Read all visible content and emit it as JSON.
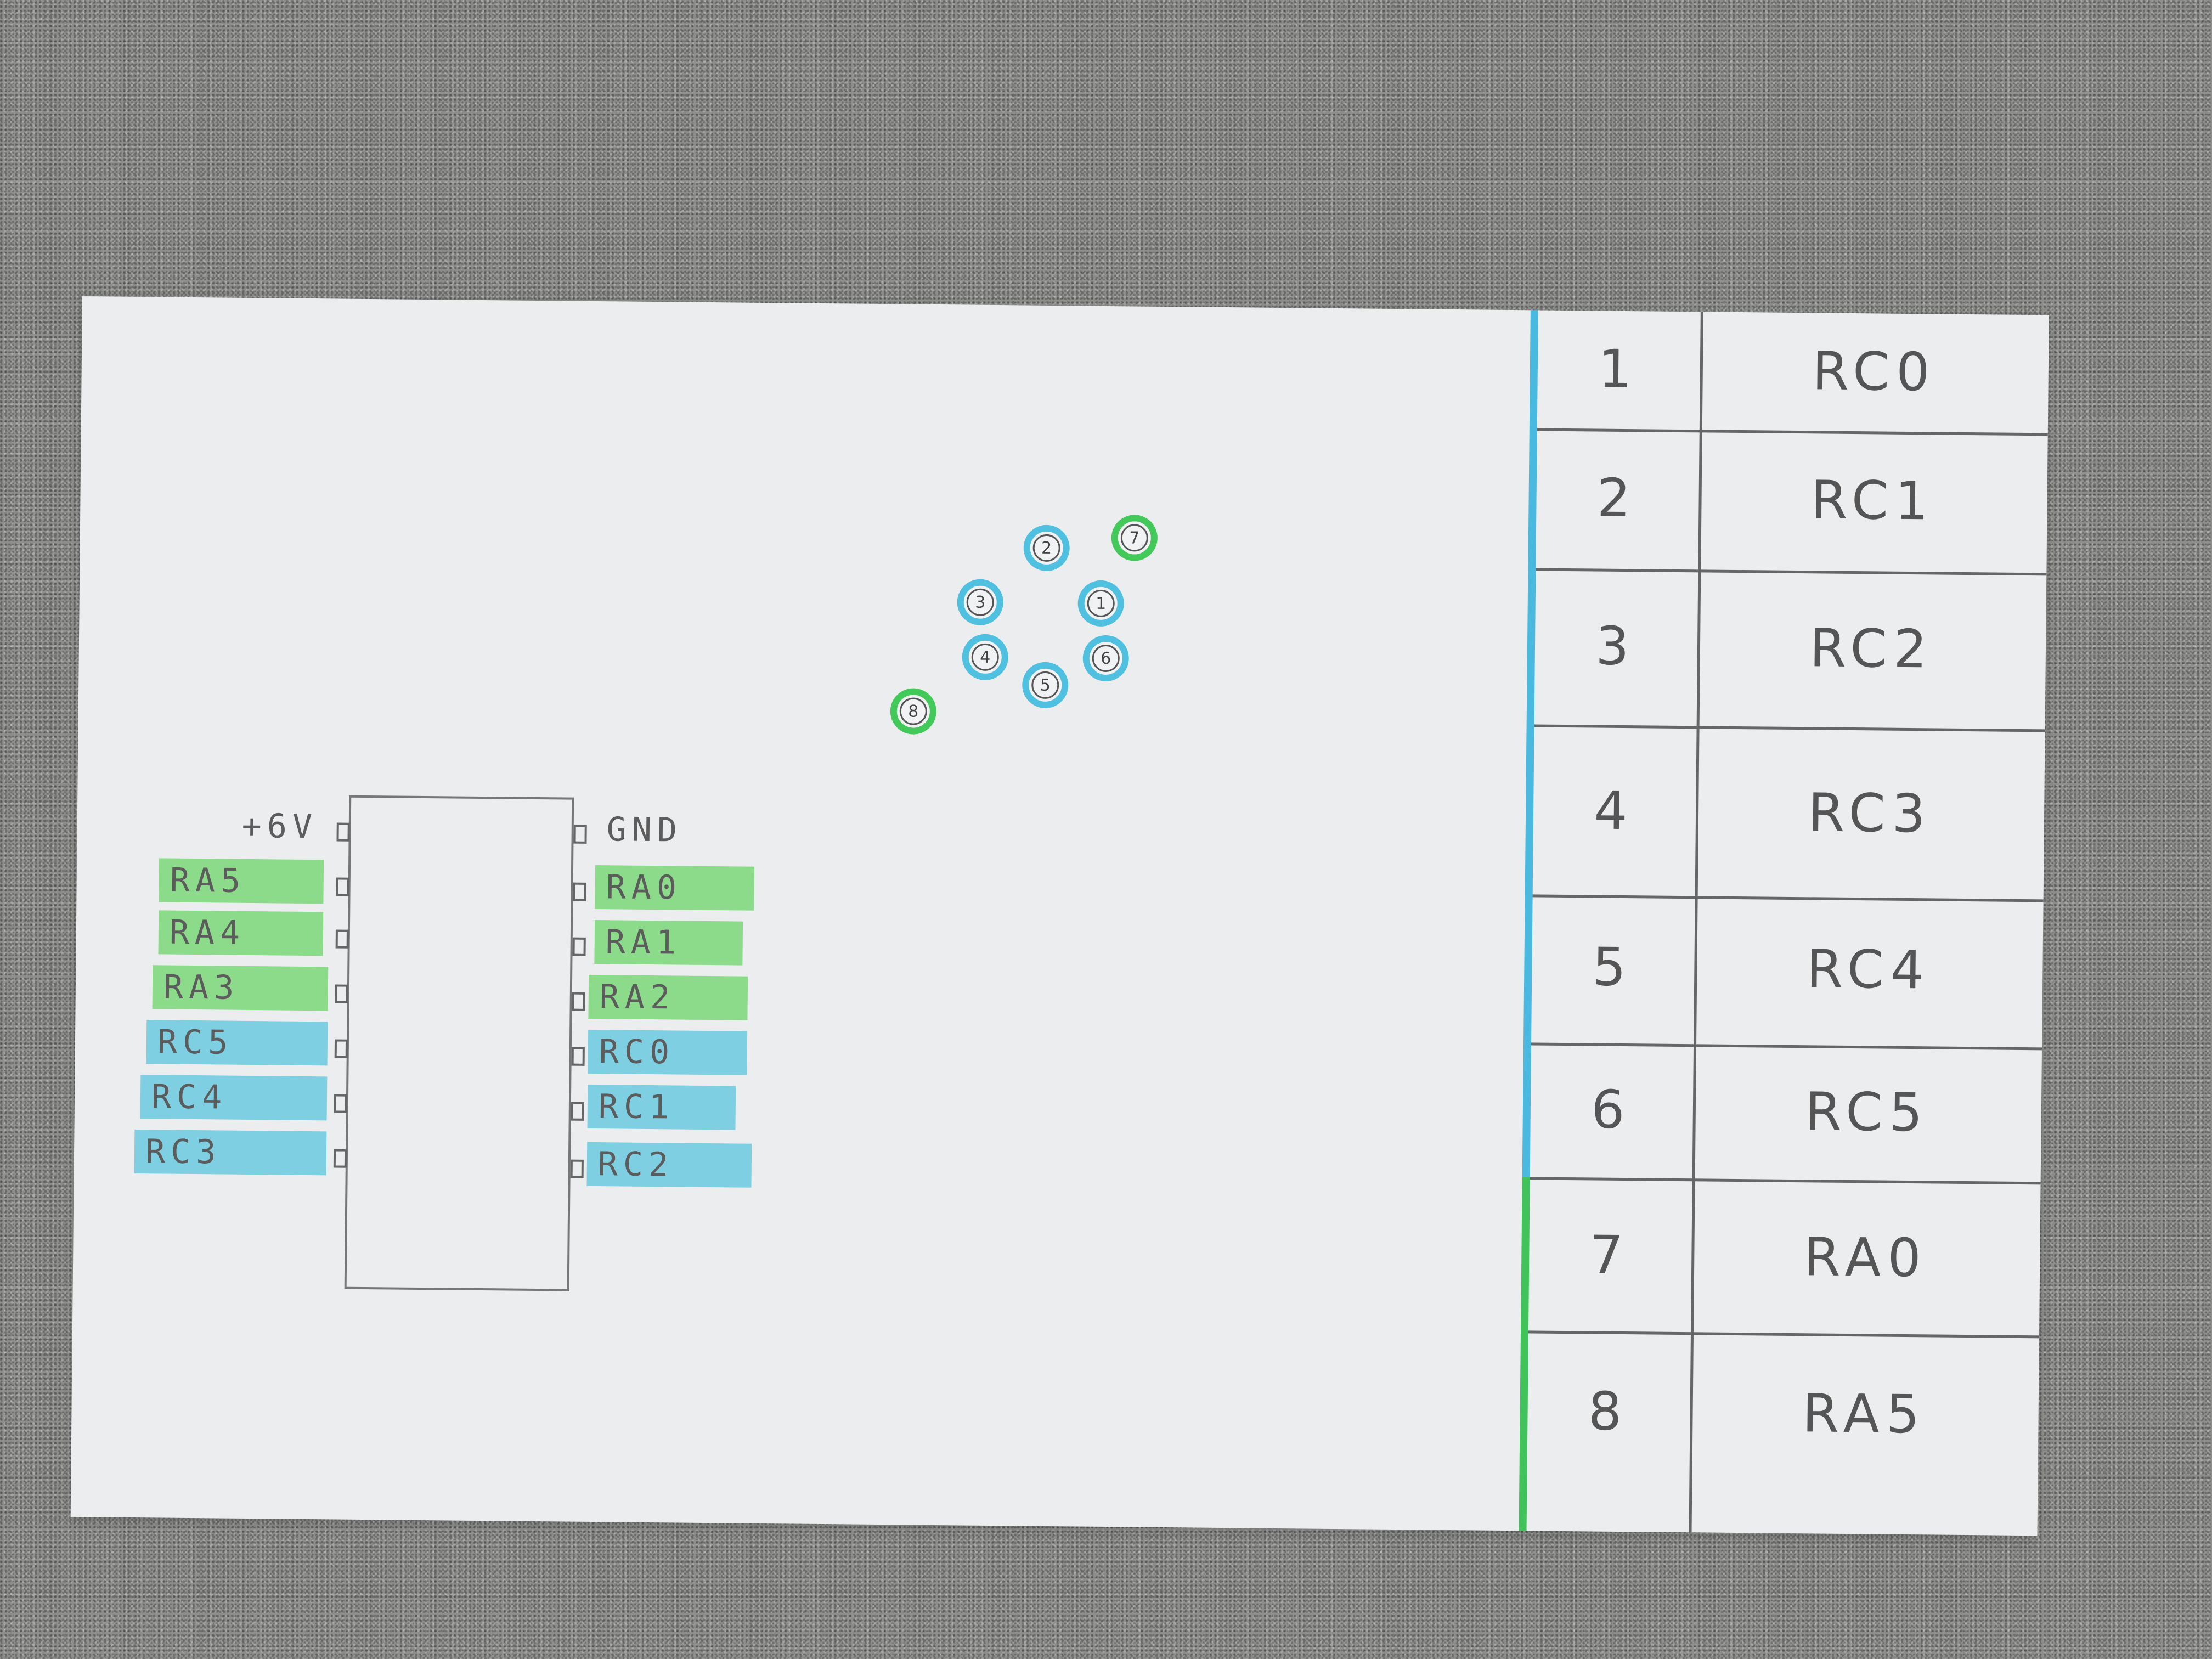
{
  "chip": {
    "left_labels": [
      {
        "text": "+6V",
        "color": "none"
      },
      {
        "text": "RA5",
        "color": "green"
      },
      {
        "text": "RA4",
        "color": "green"
      },
      {
        "text": "RA3",
        "color": "green"
      },
      {
        "text": "RC5",
        "color": "blue"
      },
      {
        "text": "RC4",
        "color": "blue"
      },
      {
        "text": "RC3",
        "color": "blue"
      }
    ],
    "right_labels": [
      {
        "text": "GND",
        "color": "none"
      },
      {
        "text": "RA0",
        "color": "green"
      },
      {
        "text": "RA1",
        "color": "green"
      },
      {
        "text": "RA2",
        "color": "green"
      },
      {
        "text": "RC0",
        "color": "blue"
      },
      {
        "text": "RC1",
        "color": "blue"
      },
      {
        "text": "RC2",
        "color": "blue"
      }
    ]
  },
  "connector_pins": [
    {
      "label": "2",
      "color": "blue"
    },
    {
      "label": "7",
      "color": "green"
    },
    {
      "label": "3",
      "color": "blue"
    },
    {
      "label": "1",
      "color": "blue"
    },
    {
      "label": "4",
      "color": "blue"
    },
    {
      "label": "6",
      "color": "blue"
    },
    {
      "label": "5",
      "color": "blue"
    },
    {
      "label": "8",
      "color": "green"
    }
  ],
  "pin_table": [
    {
      "pin": "1",
      "signal": "RC0"
    },
    {
      "pin": "2",
      "signal": "RC1"
    },
    {
      "pin": "3",
      "signal": "RC2"
    },
    {
      "pin": "4",
      "signal": "RC3"
    },
    {
      "pin": "5",
      "signal": "RC4"
    },
    {
      "pin": "6",
      "signal": "RC5"
    },
    {
      "pin": "7",
      "signal": "RA0"
    },
    {
      "pin": "8",
      "signal": "RA5"
    }
  ],
  "colors": {
    "green": "#8cdb8a",
    "blue": "#7fcfe2",
    "circle_blue": "#4fc0df",
    "circle_green": "#43c85a"
  }
}
